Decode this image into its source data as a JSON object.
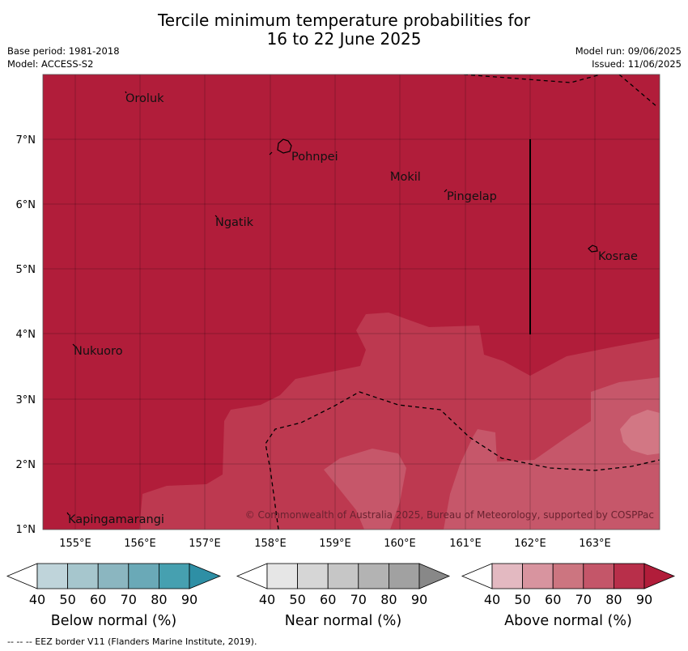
{
  "title": {
    "line1": "Tercile minimum temperature probabilities for",
    "line2": "16 to 22 June 2025"
  },
  "meta": {
    "base_period": "Base period: 1981-2018",
    "model": "Model: ACCESS-S2",
    "model_run": "Model run: 09/06/2025",
    "issued": "Issued: 11/06/2025"
  },
  "map": {
    "lon_ticks": [
      "155°E",
      "156°E",
      "157°E",
      "158°E",
      "159°E",
      "160°E",
      "161°E",
      "162°E",
      "163°E"
    ],
    "lat_ticks": [
      "1°N",
      "2°N",
      "3°N",
      "4°N",
      "5°N",
      "6°N",
      "7°N"
    ],
    "places": {
      "oroluk": "Oroluk",
      "pohnpei": "Pohnpei",
      "mokil": "Mokil",
      "pingelap": "Pingelap",
      "ngatik": "Ngatik",
      "kosrae": "Kosrae",
      "nukuoro": "Nukuoro",
      "kapingamarangi": "Kapingamarangi"
    },
    "copyright": "© Commonwealth of Australia 2025, Bureau of Meteorology, supported by COSPPac",
    "colors": {
      "above_90": "#b11d3a",
      "above_80": "#bd3950",
      "above_70": "#c6576a",
      "above_60": "#d27784"
    }
  },
  "colorbars": {
    "below": {
      "label": "Below normal (%)",
      "ticks": [
        "40",
        "50",
        "60",
        "70",
        "80",
        "90"
      ],
      "colors": [
        "#ffffff",
        "#bfd4da",
        "#a6c6cd",
        "#8bb6c0",
        "#6aa9b7",
        "#46a0b0",
        "#2e8fa5"
      ]
    },
    "near": {
      "label": "Near normal (%)",
      "ticks": [
        "40",
        "50",
        "60",
        "70",
        "80",
        "90"
      ],
      "colors": [
        "#ffffff",
        "#e6e6e6",
        "#d6d6d6",
        "#c6c6c6",
        "#b3b3b3",
        "#a1a1a1",
        "#888888"
      ]
    },
    "above": {
      "label": "Above normal (%)",
      "ticks": [
        "40",
        "50",
        "60",
        "70",
        "80",
        "90"
      ],
      "colors": [
        "#ffffff",
        "#e3b9c1",
        "#d8949f",
        "#cc7580",
        "#c45669",
        "#b82f4a",
        "#b11d3a"
      ]
    }
  },
  "footer": "-- -- -- EEZ border V11 (Flanders Marine Institute, 2019)."
}
